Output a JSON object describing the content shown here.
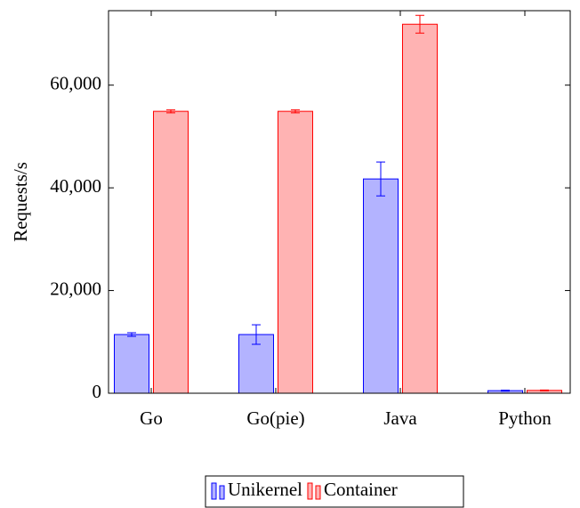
{
  "chart_data": {
    "type": "bar",
    "y_label": "Requests/s",
    "categories": [
      "Go",
      "Go(pie)",
      "Java",
      "Python"
    ],
    "series": [
      {
        "name": "Unikernel",
        "color": "#b3b3ff",
        "edge": "#0000ff",
        "values": [
          11430,
          11430,
          41730,
          500
        ],
        "errors": [
          350,
          1900,
          3300,
          100
        ]
      },
      {
        "name": "Container",
        "color": "#ffb3b3",
        "edge": "#ff0000",
        "values": [
          54900,
          54900,
          71860,
          550
        ],
        "errors": [
          300,
          300,
          1730,
          80
        ]
      }
    ],
    "ylim": [
      0,
      74500
    ],
    "yticks": [
      0,
      {
        "value": 20000,
        "label": "20,000"
      },
      {
        "value": 40000,
        "label": "40,000"
      },
      {
        "value": 60000,
        "label": "60,000"
      }
    ],
    "grid": false,
    "legend": "bottom"
  }
}
